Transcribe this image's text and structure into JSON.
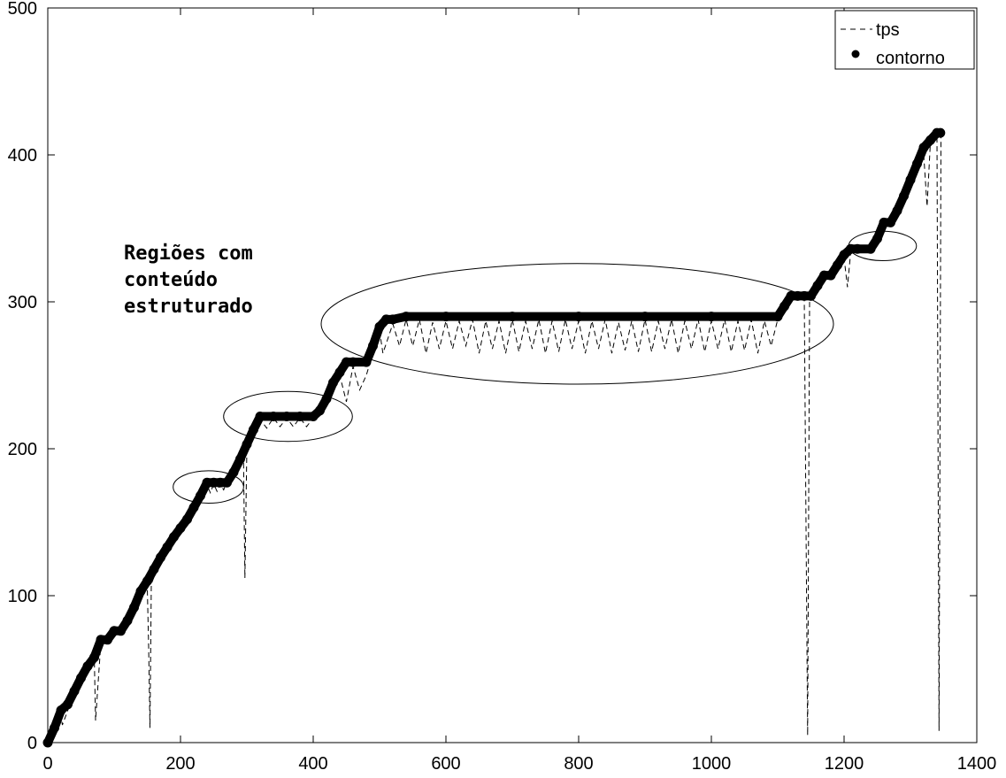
{
  "chart_data": {
    "type": "line",
    "title": "",
    "xlabel": "",
    "ylabel": "",
    "xlim": [
      0,
      1400
    ],
    "ylim": [
      0,
      500
    ],
    "xticks": [
      0,
      200,
      400,
      600,
      800,
      1000,
      1200,
      1400
    ],
    "yticks": [
      0,
      100,
      200,
      300,
      400,
      500
    ],
    "grid": false,
    "legend_position": "top-right",
    "series": [
      {
        "name": "contorno",
        "style": "thick-solid-dots",
        "color": "#000000",
        "points": [
          [
            0,
            0
          ],
          [
            10,
            10
          ],
          [
            20,
            22
          ],
          [
            30,
            26
          ],
          [
            40,
            35
          ],
          [
            50,
            44
          ],
          [
            60,
            52
          ],
          [
            70,
            58
          ],
          [
            80,
            70
          ],
          [
            90,
            70
          ],
          [
            100,
            76
          ],
          [
            110,
            76
          ],
          [
            120,
            83
          ],
          [
            130,
            92
          ],
          [
            140,
            103
          ],
          [
            150,
            110
          ],
          [
            160,
            118
          ],
          [
            170,
            126
          ],
          [
            180,
            133
          ],
          [
            190,
            140
          ],
          [
            200,
            146
          ],
          [
            210,
            152
          ],
          [
            220,
            160
          ],
          [
            230,
            168
          ],
          [
            240,
            177
          ],
          [
            250,
            177
          ],
          [
            260,
            177
          ],
          [
            270,
            177
          ],
          [
            280,
            184
          ],
          [
            290,
            193
          ],
          [
            300,
            203
          ],
          [
            310,
            213
          ],
          [
            320,
            222
          ],
          [
            340,
            222
          ],
          [
            360,
            222
          ],
          [
            380,
            222
          ],
          [
            400,
            222
          ],
          [
            410,
            226
          ],
          [
            420,
            234
          ],
          [
            430,
            245
          ],
          [
            440,
            252
          ],
          [
            450,
            259
          ],
          [
            460,
            259
          ],
          [
            480,
            259
          ],
          [
            490,
            270
          ],
          [
            500,
            283
          ],
          [
            510,
            288
          ],
          [
            520,
            288
          ],
          [
            540,
            290
          ],
          [
            600,
            290
          ],
          [
            700,
            290
          ],
          [
            800,
            290
          ],
          [
            900,
            290
          ],
          [
            1000,
            290
          ],
          [
            1100,
            290
          ],
          [
            1110,
            297
          ],
          [
            1120,
            304
          ],
          [
            1130,
            304
          ],
          [
            1140,
            304
          ],
          [
            1150,
            304
          ],
          [
            1160,
            311
          ],
          [
            1170,
            318
          ],
          [
            1180,
            318
          ],
          [
            1190,
            325
          ],
          [
            1200,
            332
          ],
          [
            1210,
            336
          ],
          [
            1220,
            336
          ],
          [
            1240,
            336
          ],
          [
            1250,
            343
          ],
          [
            1260,
            354
          ],
          [
            1270,
            354
          ],
          [
            1280,
            362
          ],
          [
            1290,
            372
          ],
          [
            1300,
            383
          ],
          [
            1310,
            394
          ],
          [
            1320,
            405
          ],
          [
            1330,
            410
          ],
          [
            1340,
            415
          ],
          [
            1345,
            415
          ]
        ]
      },
      {
        "name": "tps",
        "style": "dashed",
        "color": "#000000",
        "points": [
          [
            0,
            0
          ],
          [
            20,
            18
          ],
          [
            22,
            12
          ],
          [
            40,
            34
          ],
          [
            60,
            52
          ],
          [
            70,
            60
          ],
          [
            72,
            15
          ],
          [
            80,
            68
          ],
          [
            100,
            76
          ],
          [
            120,
            80
          ],
          [
            130,
            90
          ],
          [
            150,
            105
          ],
          [
            152,
            65
          ],
          [
            154,
            10
          ],
          [
            156,
            108
          ],
          [
            170,
            124
          ],
          [
            190,
            138
          ],
          [
            210,
            150
          ],
          [
            230,
            166
          ],
          [
            240,
            175
          ],
          [
            245,
            170
          ],
          [
            250,
            176
          ],
          [
            255,
            171
          ],
          [
            260,
            176
          ],
          [
            265,
            172
          ],
          [
            270,
            178
          ],
          [
            280,
            183
          ],
          [
            295,
            190
          ],
          [
            297,
            112
          ],
          [
            300,
            200
          ],
          [
            320,
            220
          ],
          [
            330,
            214
          ],
          [
            340,
            221
          ],
          [
            350,
            215
          ],
          [
            360,
            221
          ],
          [
            370,
            215
          ],
          [
            380,
            221
          ],
          [
            390,
            215
          ],
          [
            400,
            221
          ],
          [
            410,
            224
          ],
          [
            430,
            240
          ],
          [
            440,
            250
          ],
          [
            450,
            232
          ],
          [
            460,
            256
          ],
          [
            470,
            240
          ],
          [
            480,
            250
          ],
          [
            500,
            280
          ],
          [
            505,
            265
          ],
          [
            520,
            285
          ],
          [
            530,
            270
          ],
          [
            540,
            288
          ],
          [
            550,
            270
          ],
          [
            560,
            288
          ],
          [
            570,
            265
          ],
          [
            580,
            286
          ],
          [
            590,
            268
          ],
          [
            600,
            287
          ],
          [
            610,
            268
          ],
          [
            620,
            287
          ],
          [
            630,
            270
          ],
          [
            640,
            288
          ],
          [
            650,
            265
          ],
          [
            660,
            287
          ],
          [
            670,
            268
          ],
          [
            680,
            287
          ],
          [
            690,
            265
          ],
          [
            700,
            288
          ],
          [
            710,
            266
          ],
          [
            720,
            287
          ],
          [
            730,
            268
          ],
          [
            740,
            288
          ],
          [
            750,
            265
          ],
          [
            760,
            287
          ],
          [
            770,
            266
          ],
          [
            780,
            288
          ],
          [
            790,
            268
          ],
          [
            800,
            287
          ],
          [
            810,
            265
          ],
          [
            820,
            287
          ],
          [
            830,
            268
          ],
          [
            840,
            288
          ],
          [
            850,
            265
          ],
          [
            860,
            286
          ],
          [
            870,
            267
          ],
          [
            880,
            287
          ],
          [
            890,
            266
          ],
          [
            900,
            288
          ],
          [
            910,
            266
          ],
          [
            920,
            287
          ],
          [
            930,
            268
          ],
          [
            940,
            288
          ],
          [
            950,
            265
          ],
          [
            960,
            287
          ],
          [
            970,
            268
          ],
          [
            980,
            288
          ],
          [
            990,
            266
          ],
          [
            1000,
            287
          ],
          [
            1010,
            268
          ],
          [
            1020,
            288
          ],
          [
            1030,
            266
          ],
          [
            1040,
            287
          ],
          [
            1050,
            267
          ],
          [
            1060,
            288
          ],
          [
            1070,
            265
          ],
          [
            1080,
            287
          ],
          [
            1090,
            270
          ],
          [
            1100,
            288
          ],
          [
            1120,
            302
          ],
          [
            1140,
            303
          ],
          [
            1145,
            5
          ],
          [
            1148,
            300
          ],
          [
            1160,
            310
          ],
          [
            1170,
            318
          ],
          [
            1190,
            324
          ],
          [
            1200,
            330
          ],
          [
            1205,
            310
          ],
          [
            1210,
            334
          ],
          [
            1240,
            336
          ],
          [
            1260,
            352
          ],
          [
            1280,
            360
          ],
          [
            1300,
            380
          ],
          [
            1320,
            400
          ],
          [
            1325,
            365
          ],
          [
            1330,
            408
          ],
          [
            1340,
            412
          ],
          [
            1343,
            8
          ],
          [
            1346,
            415
          ]
        ]
      }
    ],
    "annotations": {
      "text_lines": [
        "Regiões com",
        "conteúdo",
        "estruturado"
      ],
      "ellipses": [
        {
          "cx": 242,
          "cy": 174,
          "rx": 53,
          "ry": 11
        },
        {
          "cx": 362,
          "cy": 222,
          "rx": 97,
          "ry": 17
        },
        {
          "cx": 798,
          "cy": 285,
          "rx": 386,
          "ry": 41
        },
        {
          "cx": 1258,
          "cy": 338,
          "rx": 51,
          "ry": 10
        }
      ]
    }
  },
  "legend": {
    "items": [
      {
        "label": "tps",
        "marker": "dashed-line"
      },
      {
        "label": "contorno",
        "marker": "dot"
      }
    ]
  }
}
